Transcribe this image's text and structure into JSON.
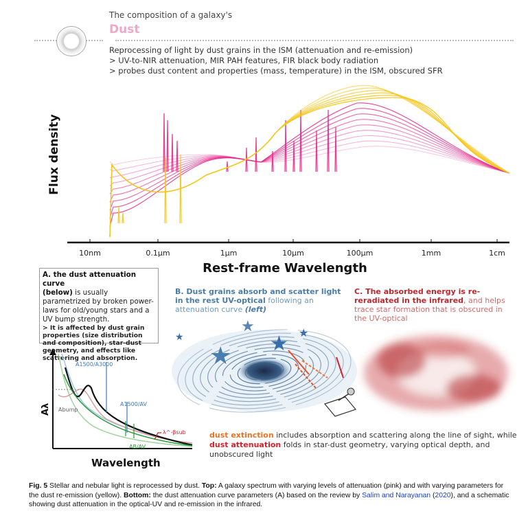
{
  "header": {
    "kicker": "The composition of a galaxy's",
    "title": "Dust",
    "lines": [
      "Reprocessing of light by dust grains in the ISM (attenuation and re-emission)",
      "> UV-to-NIR attenuation, MIR PAH features, FIR black body radiation",
      "> probes dust content and properties (mass, temperature) in the ISM, obscured SFR"
    ]
  },
  "spectrum": {
    "ylabel": "Flux density",
    "xlabel": "Rest-frame Wavelength",
    "ticks": [
      "10nm",
      "0.1μm",
      "1μm",
      "10μm",
      "100μm",
      "1mm",
      "1cm"
    ],
    "colors": {
      "attenuation": "#e8288a",
      "reemission": "#f5c518"
    }
  },
  "panelA": {
    "title": "A. the dust attenuation curve",
    "below": "(below)",
    "text1": " is usually parametrized by broken power-laws for old/young stars and a UV bump strength.",
    "text2": "> It is affected by dust grain properties (size distribution and composition), star-dust geometry, and effects like scattering and absorption.",
    "ylabel": "Aλ",
    "xlabel": "Wavelength",
    "labels": {
      "ratio1": "A1500/A3000",
      "ratio2": "A1500/AV",
      "bump": "Abump",
      "ratio3": "AB/AV",
      "powerlaw": "λ^-βsub"
    }
  },
  "panelB": {
    "bold": "B. Dust grains absorb and scatter light in the rest UV-optical",
    "text": " following an attenuation curve ",
    "left": "(left)"
  },
  "panelC": {
    "bold": "C. The absorbed energy is re-reradiated in the infrared",
    "text": ", and helps trace star formation that is obscured in the UV-optical"
  },
  "bottom": {
    "extinction": "dust extinction",
    "text1": " includes absorption and scattering along the line of sight, while",
    "attenuation": "dust attenuation",
    "text2": " folds in star-dust geometry, varying optical depth, and unobscured light"
  },
  "caption": {
    "fig": "Fig. 5",
    "t1": " Stellar and nebular light is reprocessed by dust. ",
    "top": "Top:",
    "t2": " A galaxy spectrum with varying levels of attenuation (pink) and with varying parameters for the dust re-emission (yellow). ",
    "bottomlbl": "Bottom:",
    "t3": " the dust attenuation curve parameters (A) based on the review by ",
    "ref": "Salim and Narayanan",
    "paren1": " (",
    "year": "2020",
    "t4": "), and a schematic showing dust attenuation in the optical-UV and re-emission in the infrared."
  }
}
